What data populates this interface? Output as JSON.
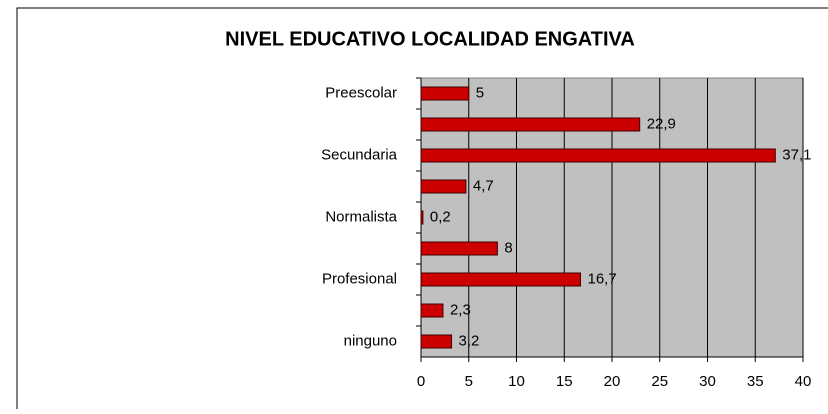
{
  "chart_data": {
    "type": "barh",
    "title": "NIVEL EDUCATIVO LOCALIDAD ENGATIVA",
    "categories": [
      "Preescolar",
      null,
      "Secundaria",
      null,
      "Normalista",
      null,
      "Profesional",
      null,
      "ninguno"
    ],
    "values": [
      5,
      22.9,
      37.1,
      4.7,
      0.2,
      8,
      16.7,
      2.3,
      3.2
    ],
    "value_labels": [
      "5",
      "22,9",
      "37,1",
      "4,7",
      "0,2",
      "8",
      "16,7",
      "2,3",
      "3,2"
    ],
    "color": "#cc0000",
    "xlim": [
      0,
      40
    ],
    "xticks": [
      0,
      5,
      10,
      15,
      20,
      25,
      30,
      35,
      40
    ],
    "grid": true
  }
}
